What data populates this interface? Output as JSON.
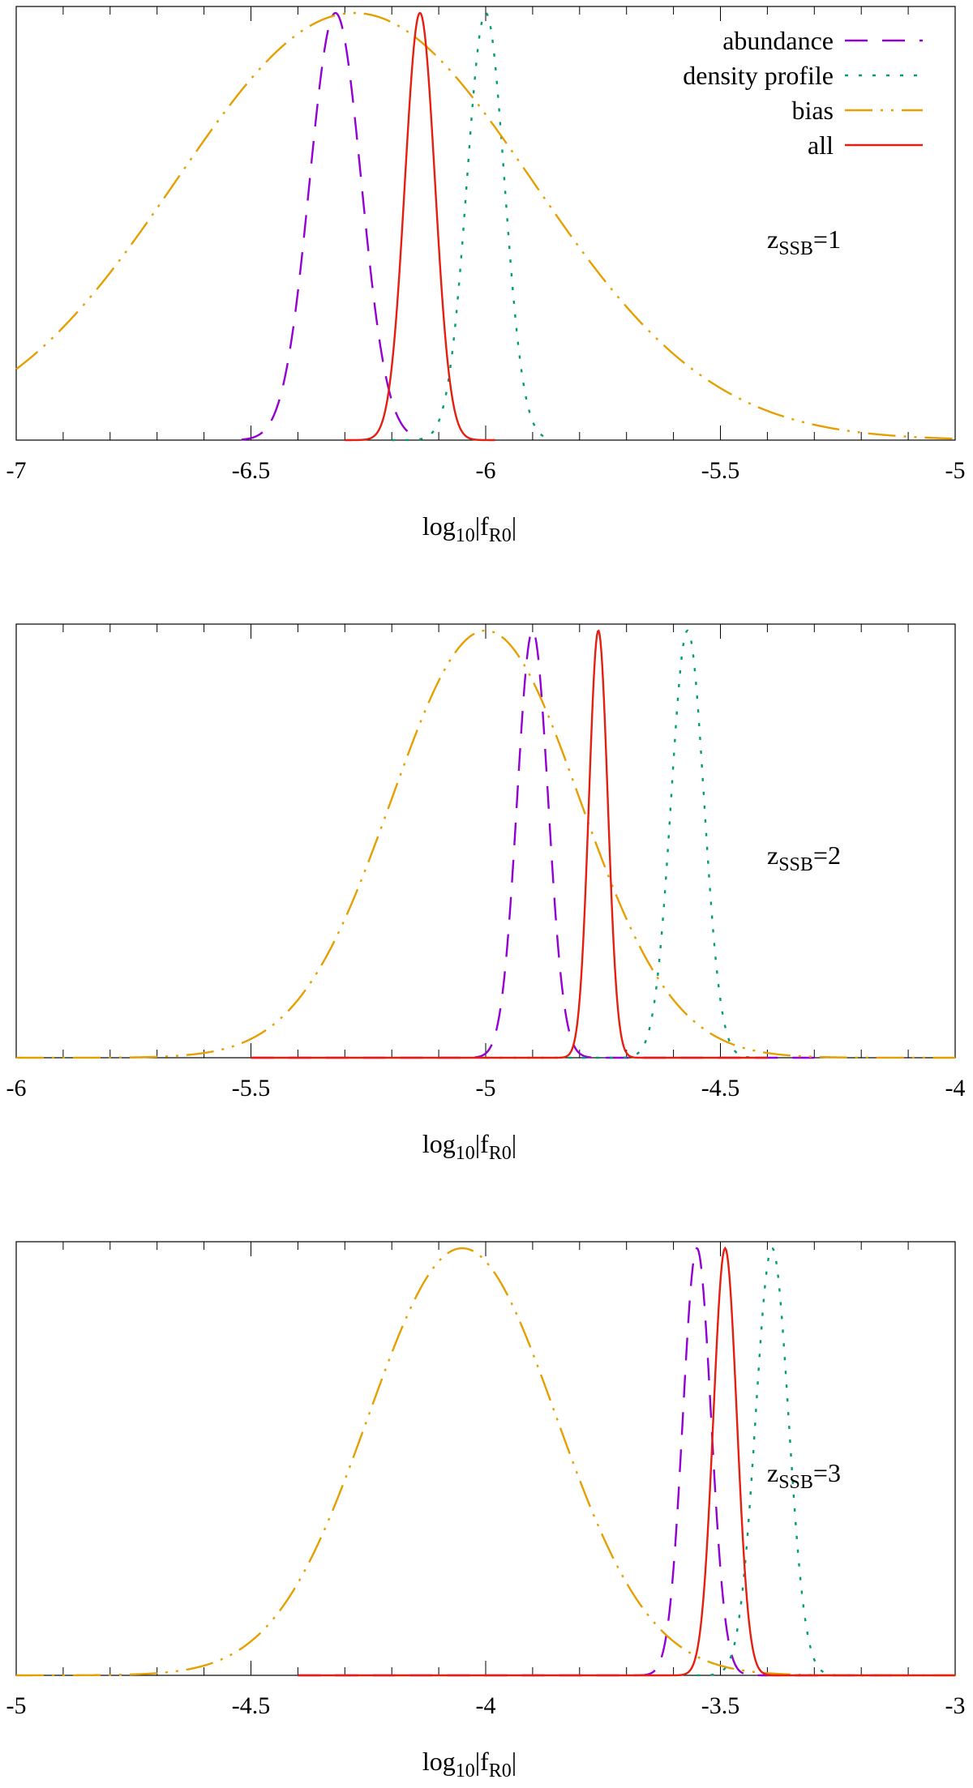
{
  "series_styles": {
    "abundance": {
      "color": "#9400d3",
      "dash": "28,18"
    },
    "density": {
      "color": "#009e73",
      "dash": "4,13"
    },
    "bias": {
      "color": "#e69f00",
      "dash": "34,10,3,10,3,10"
    },
    "all": {
      "color": "#e51e10",
      "dash": ""
    }
  },
  "legend": {
    "entries": [
      {
        "key": "abundance",
        "label": "abundance"
      },
      {
        "key": "density",
        "label": "density profile"
      },
      {
        "key": "bias",
        "label": "bias"
      },
      {
        "key": "all",
        "label": "all"
      }
    ]
  },
  "chart_data": [
    {
      "type": "line",
      "xlabel": "log10|fR0|",
      "xlabel_main": "log",
      "xlabel_sub1": "10",
      "xlabel_mid": "|f",
      "xlabel_sub2": "R0",
      "xlabel_end": "|",
      "annotation_main": "z",
      "annotation_sub": "SSB",
      "annotation_val": "=1",
      "xlim": [
        -7,
        -5
      ],
      "ylim": [
        0,
        1
      ],
      "xticks": [
        -7,
        -6.5,
        -6,
        -5.5,
        -5
      ],
      "xtick_labels": [
        "-7",
        "-6.5",
        "-6",
        "-5.5",
        "-5"
      ],
      "series": [
        {
          "key": "abundance",
          "name": "abundance",
          "mu": -6.32,
          "sigma": 0.055,
          "xmin": -6.52,
          "xmax": -6.14
        },
        {
          "key": "density",
          "name": "density profile",
          "mu": -6.0,
          "sigma": 0.04,
          "xmin": -6.2,
          "xmax": -5.86
        },
        {
          "key": "bias",
          "name": "bias",
          "mu": -6.28,
          "sigma": 0.38,
          "xmin": -7.0,
          "xmax": -5.0
        },
        {
          "key": "all",
          "name": "all",
          "mu": -6.14,
          "sigma": 0.032,
          "xmin": -6.3,
          "xmax": -5.98
        }
      ]
    },
    {
      "type": "line",
      "xlabel": "log10|fR0|",
      "xlabel_main": "log",
      "xlabel_sub1": "10",
      "xlabel_mid": "|f",
      "xlabel_sub2": "R0",
      "xlabel_end": "|",
      "annotation_main": "z",
      "annotation_sub": "SSB",
      "annotation_val": "=2",
      "xlim": [
        -6,
        -4
      ],
      "ylim": [
        0,
        1
      ],
      "xticks": [
        -6,
        -5.5,
        -5,
        -4.5,
        -4
      ],
      "xtick_labels": [
        "-6",
        "-5.5",
        "-5",
        "-4.5",
        "-4"
      ],
      "series": [
        {
          "key": "abundance",
          "name": "abundance",
          "mu": -4.9,
          "sigma": 0.033,
          "xmin": -5.5,
          "xmax": -4.3
        },
        {
          "key": "density",
          "name": "density profile",
          "mu": -4.57,
          "sigma": 0.035,
          "xmin": -5.0,
          "xmax": -4.43
        },
        {
          "key": "bias",
          "name": "bias",
          "mu": -5.0,
          "sigma": 0.2,
          "xmin": -6.0,
          "xmax": -4.0
        },
        {
          "key": "all",
          "name": "all",
          "mu": -4.76,
          "sigma": 0.02,
          "xmin": -5.5,
          "xmax": -4.4
        }
      ]
    },
    {
      "type": "line",
      "xlabel": "log10|fR0|",
      "xlabel_main": "log",
      "xlabel_sub1": "10",
      "xlabel_mid": "|f",
      "xlabel_sub2": "R0",
      "xlabel_end": "|",
      "annotation_main": "z",
      "annotation_sub": "SSB",
      "annotation_val": "=3",
      "xlim": [
        -5,
        -3
      ],
      "ylim": [
        0,
        1
      ],
      "xticks": [
        -5,
        -4.5,
        -4,
        -3.5,
        -3
      ],
      "xtick_labels": [
        "-5",
        "-4.5",
        "-4",
        "-3.5",
        "-3"
      ],
      "series": [
        {
          "key": "abundance",
          "name": "abundance",
          "mu": -3.55,
          "sigma": 0.03,
          "xmin": -4.4,
          "xmax": -3.1
        },
        {
          "key": "density",
          "name": "density profile",
          "mu": -3.39,
          "sigma": 0.035,
          "xmin": -3.55,
          "xmax": -3.1
        },
        {
          "key": "bias",
          "name": "bias",
          "mu": -4.05,
          "sigma": 0.2,
          "xmin": -5.0,
          "xmax": -3.0
        },
        {
          "key": "all",
          "name": "all",
          "mu": -3.49,
          "sigma": 0.025,
          "xmin": -4.4,
          "xmax": -3.0
        }
      ]
    }
  ]
}
